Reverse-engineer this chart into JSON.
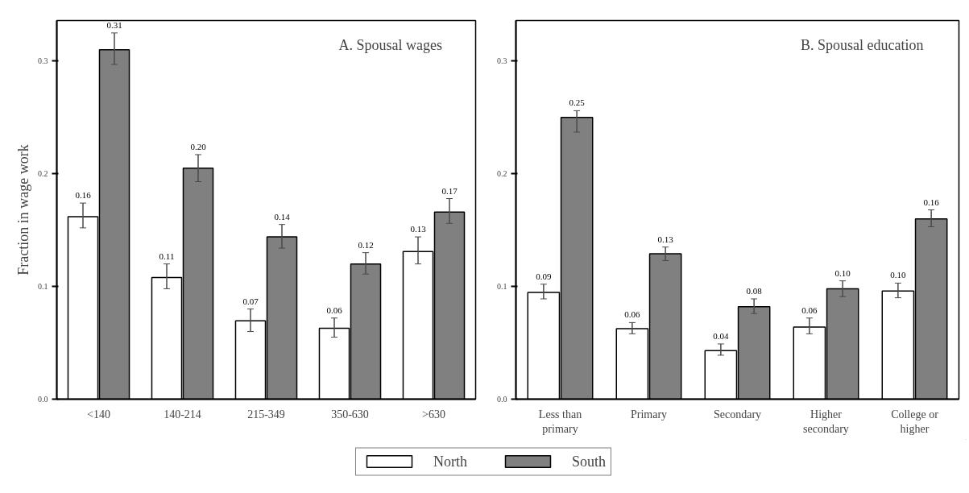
{
  "chart_data": [
    {
      "type": "bar",
      "title": "A. Spousal wages",
      "ylabel": "Fraction in wage work",
      "categories": [
        "<140",
        "140-214",
        "215-349",
        "350-630",
        ">630"
      ],
      "ylim": [
        0,
        0.336
      ],
      "yticks": [
        {
          "value": 0,
          "label": "0.0"
        },
        0.1,
        0.2,
        0.3
      ],
      "legend": "bottom",
      "series": [
        {
          "name": "North",
          "color": "#ffffff",
          "values": [
            0.162,
            0.108,
            0.0696,
            0.063,
            0.131
          ],
          "errors": [
            [
              0.152,
              0.174
            ],
            [
              0.098,
              0.12
            ],
            [
              0.06,
              0.08
            ],
            [
              0.055,
              0.072
            ],
            [
              0.12,
              0.144
            ]
          ],
          "value_labels": [
            "0.16",
            "0.11",
            "0.07",
            "0.06",
            "0.13"
          ]
        },
        {
          "name": "South",
          "color": "#808080",
          "values": [
            0.31,
            0.205,
            0.144,
            0.12,
            0.166
          ],
          "errors": [
            [
              0.297,
              0.325
            ],
            [
              0.193,
              0.217
            ],
            [
              0.134,
              0.155
            ],
            [
              0.111,
              0.13
            ],
            [
              0.156,
              0.178
            ]
          ],
          "value_labels": [
            "0.31",
            "0.20",
            "0.14",
            "0.12",
            "0.17"
          ]
        }
      ]
    },
    {
      "type": "bar",
      "title": "B. Spousal education",
      "categories": [
        "Less than primary",
        "Primary",
        "Secondary",
        "Higher secondary",
        "College or higher"
      ],
      "ylim": [
        0,
        0.336
      ],
      "legend": "bottom",
      "yticks": [
        {
          "value": 0,
          "label": "0.0"
        },
        0.1,
        0.2,
        0.3
      ],
      "series": [
        {
          "name": "North",
          "color": "#ffffff",
          "values": [
            0.0947,
            0.0626,
            0.043,
            0.064,
            0.096
          ],
          "errors": [
            [
              0.089,
              0.102
            ],
            [
              0.058,
              0.068
            ],
            [
              0.039,
              0.049
            ],
            [
              0.058,
              0.072
            ],
            [
              0.09,
              0.103
            ]
          ],
          "value_labels": [
            "0.09",
            "0.06",
            "0.04",
            "0.06",
            "0.10"
          ]
        },
        {
          "name": "South",
          "color": "#808080",
          "values": [
            0.25,
            0.129,
            0.082,
            0.098,
            0.16
          ],
          "errors": [
            [
              0.237,
              0.256
            ],
            [
              0.123,
              0.135
            ],
            [
              0.076,
              0.089
            ],
            [
              0.091,
              0.105
            ],
            [
              0.153,
              0.168
            ]
          ],
          "value_labels": [
            "0.25",
            "0.13",
            "0.08",
            "0.10",
            "0.16"
          ]
        }
      ]
    }
  ]
}
